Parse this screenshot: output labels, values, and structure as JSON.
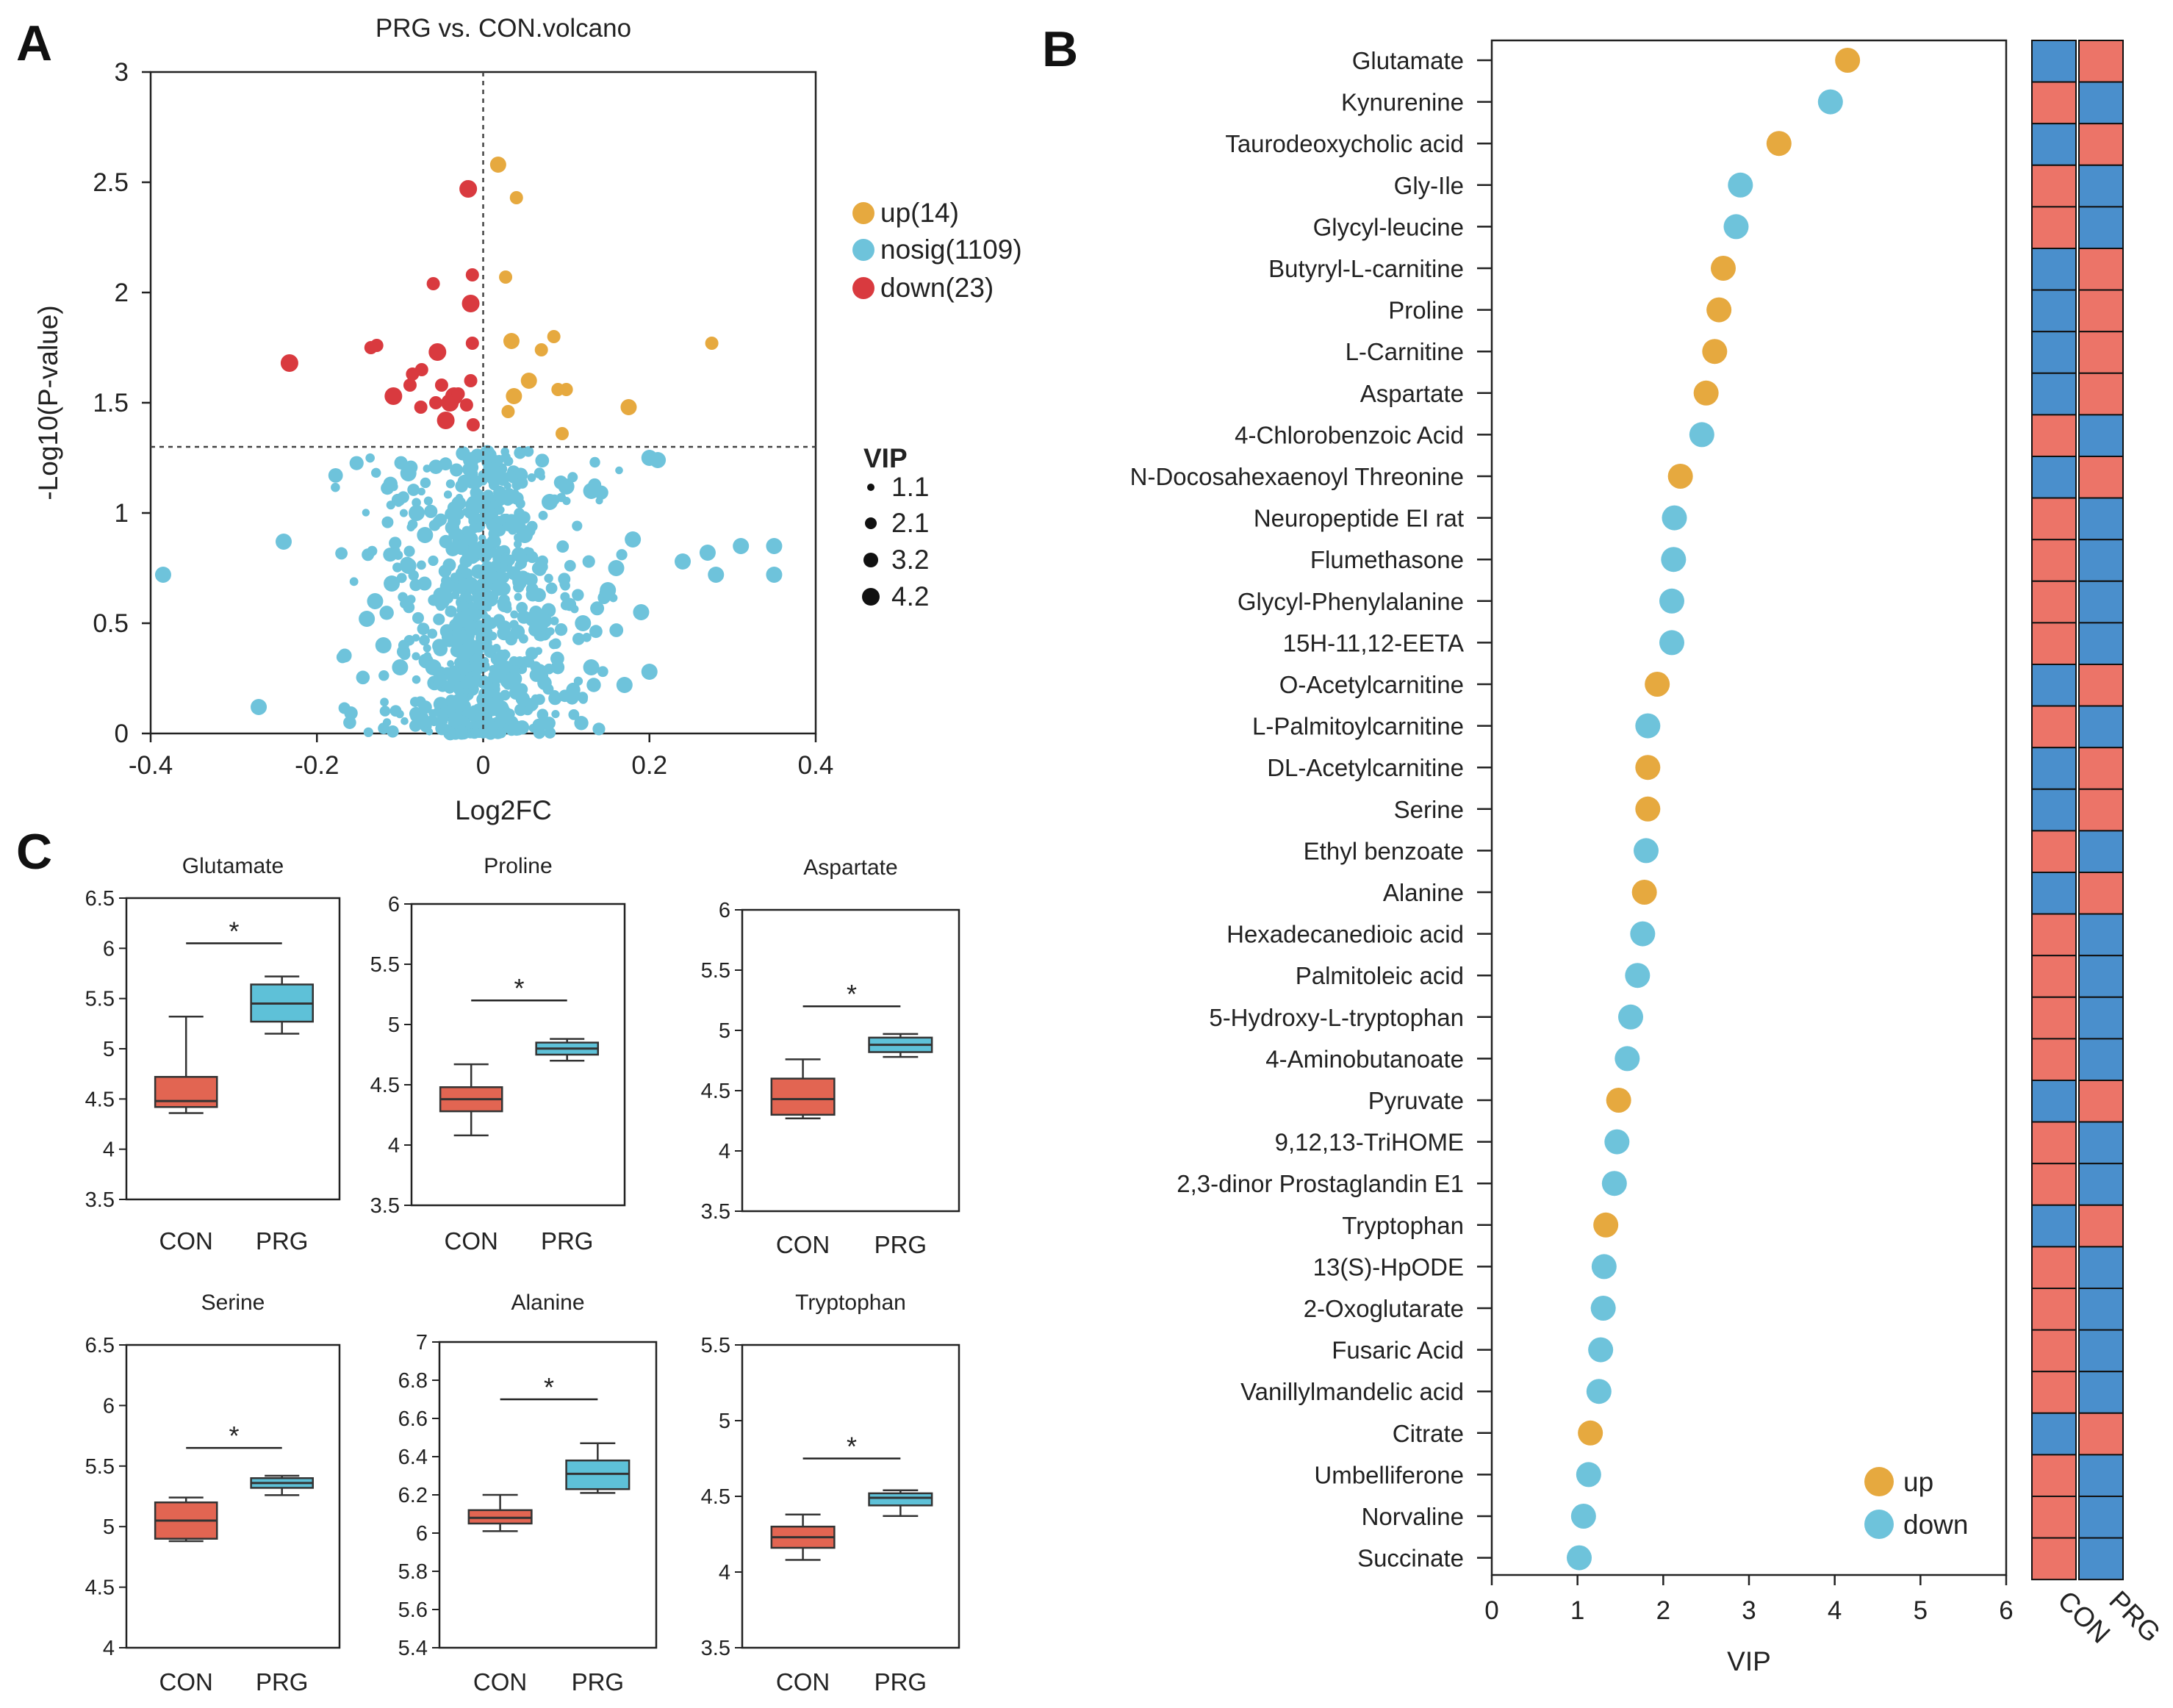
{
  "panels": {
    "a": "A",
    "b": "B",
    "c": "C"
  },
  "colors": {
    "up": "#E6A93F",
    "nosig": "#6EC3DB",
    "down": "#D93A3F",
    "box_con": "#E26552",
    "box_prg": "#5EC1D8",
    "heat_red": "#EC7468",
    "heat_blue": "#4A8FCC"
  },
  "chart_data": [
    {
      "type": "scatter",
      "title": "PRG vs. CON.volcano",
      "xlabel": "Log2FC",
      "ylabel": "-Log10(P-value)",
      "xlim": [
        -0.4,
        0.4
      ],
      "ylim": [
        0,
        3
      ],
      "xticks": [
        "-0.4",
        "-0.2",
        "0",
        "0.2",
        "0.4"
      ],
      "yticks": [
        "0",
        "0.5",
        "1",
        "1.5",
        "2",
        "2.5",
        "3"
      ],
      "thresholds": {
        "log2fc": 0,
        "neg_log10_p": 1.3
      },
      "legend": {
        "up": "up(14)",
        "nosig": "nosig(1109)",
        "down": "down(23)"
      },
      "size_legend": {
        "title": "VIP",
        "values": [
          "1.1",
          "2.1",
          "3.2",
          "4.2"
        ]
      },
      "up_points": [
        [
          0.018,
          2.58
        ],
        [
          0.04,
          2.43
        ],
        [
          0.027,
          2.07
        ],
        [
          0.034,
          1.78
        ],
        [
          0.07,
          1.74
        ],
        [
          0.085,
          1.8
        ],
        [
          0.055,
          1.6
        ],
        [
          0.09,
          1.56
        ],
        [
          0.1,
          1.56
        ],
        [
          0.037,
          1.53
        ],
        [
          0.03,
          1.46
        ],
        [
          0.095,
          1.36
        ],
        [
          0.175,
          1.48
        ],
        [
          0.275,
          1.77
        ]
      ],
      "down_points": [
        [
          -0.018,
          2.47
        ],
        [
          -0.013,
          2.08
        ],
        [
          -0.06,
          2.04
        ],
        [
          -0.015,
          1.95
        ],
        [
          -0.128,
          1.76
        ],
        [
          -0.135,
          1.75
        ],
        [
          -0.055,
          1.73
        ],
        [
          -0.013,
          1.77
        ],
        [
          -0.074,
          1.65
        ],
        [
          -0.233,
          1.68
        ],
        [
          -0.085,
          1.63
        ],
        [
          -0.05,
          1.58
        ],
        [
          -0.035,
          1.53
        ],
        [
          -0.015,
          1.6
        ],
        [
          -0.088,
          1.58
        ],
        [
          -0.04,
          1.5
        ],
        [
          -0.02,
          1.49
        ],
        [
          -0.057,
          1.5
        ],
        [
          -0.045,
          1.42
        ],
        [
          -0.012,
          1.4
        ],
        [
          -0.075,
          1.48
        ],
        [
          -0.108,
          1.53
        ],
        [
          -0.03,
          1.54
        ]
      ],
      "nosig_points": [
        [
          -0.385,
          0.72
        ],
        [
          -0.24,
          0.87
        ],
        [
          -0.27,
          0.12
        ],
        [
          -0.14,
          0.52
        ],
        [
          -0.13,
          0.6
        ],
        [
          -0.11,
          0.68
        ],
        [
          -0.12,
          0.4
        ],
        [
          -0.1,
          0.3
        ],
        [
          -0.09,
          1.18
        ],
        [
          -0.09,
          0.76
        ],
        [
          -0.08,
          1.0
        ],
        [
          -0.07,
          0.9
        ],
        [
          -0.06,
          0.3
        ],
        [
          -0.05,
          0.6
        ],
        [
          0.05,
          0.9
        ],
        [
          0.06,
          0.52
        ],
        [
          0.08,
          1.05
        ],
        [
          0.1,
          1.12
        ],
        [
          0.12,
          0.5
        ],
        [
          0.13,
          0.3
        ],
        [
          0.15,
          0.65
        ],
        [
          0.17,
          0.22
        ],
        [
          0.18,
          0.88
        ],
        [
          0.19,
          0.55
        ],
        [
          0.2,
          0.28
        ],
        [
          0.2,
          1.25
        ],
        [
          0.21,
          1.24
        ],
        [
          0.24,
          0.78
        ],
        [
          0.27,
          0.82
        ],
        [
          0.28,
          0.72
        ],
        [
          0.31,
          0.85
        ],
        [
          0.35,
          0.85
        ],
        [
          0.35,
          0.72
        ],
        [
          0.13,
          1.1
        ],
        [
          0.16,
          0.75
        ]
      ]
    },
    {
      "type": "dot",
      "title": "",
      "xlabel": "VIP",
      "xlim": [
        0,
        6
      ],
      "xticks": [
        "0",
        "1",
        "2",
        "3",
        "4",
        "5",
        "6"
      ],
      "legend": {
        "up": "up",
        "down": "down"
      },
      "heatmap_columns": [
        "CON",
        "PRG"
      ],
      "metabolites": [
        {
          "name": "Glutamate",
          "vip": 4.15,
          "dir": "up",
          "con": 0,
          "prg": 1
        },
        {
          "name": "Kynurenine",
          "vip": 3.95,
          "dir": "down",
          "con": 1,
          "prg": 0
        },
        {
          "name": "Taurodeoxycholic acid",
          "vip": 3.35,
          "dir": "up",
          "con": 0,
          "prg": 1
        },
        {
          "name": "Gly-Ile",
          "vip": 2.9,
          "dir": "down",
          "con": 1,
          "prg": 0
        },
        {
          "name": "Glycyl-leucine",
          "vip": 2.85,
          "dir": "down",
          "con": 1,
          "prg": 0
        },
        {
          "name": "Butyryl-L-carnitine",
          "vip": 2.7,
          "dir": "up",
          "con": 0,
          "prg": 1
        },
        {
          "name": "Proline",
          "vip": 2.65,
          "dir": "up",
          "con": 0,
          "prg": 1
        },
        {
          "name": "L-Carnitine",
          "vip": 2.6,
          "dir": "up",
          "con": 0,
          "prg": 1
        },
        {
          "name": "Aspartate",
          "vip": 2.5,
          "dir": "up",
          "con": 0,
          "prg": 1
        },
        {
          "name": "4-Chlorobenzoic Acid",
          "vip": 2.45,
          "dir": "down",
          "con": 1,
          "prg": 0
        },
        {
          "name": "N-Docosahexaenoyl Threonine",
          "vip": 2.2,
          "dir": "up",
          "con": 0,
          "prg": 1
        },
        {
          "name": "Neuropeptide EI rat",
          "vip": 2.13,
          "dir": "down",
          "con": 1,
          "prg": 0
        },
        {
          "name": "Flumethasone",
          "vip": 2.12,
          "dir": "down",
          "con": 1,
          "prg": 0
        },
        {
          "name": "Glycyl-Phenylalanine",
          "vip": 2.1,
          "dir": "down",
          "con": 1,
          "prg": 0
        },
        {
          "name": "15H-11,12-EETA",
          "vip": 2.1,
          "dir": "down",
          "con": 1,
          "prg": 0
        },
        {
          "name": "O-Acetylcarnitine",
          "vip": 1.93,
          "dir": "up",
          "con": 0,
          "prg": 1
        },
        {
          "name": "L-Palmitoylcarnitine",
          "vip": 1.82,
          "dir": "down",
          "con": 1,
          "prg": 0
        },
        {
          "name": "DL-Acetylcarnitine",
          "vip": 1.82,
          "dir": "up",
          "con": 0,
          "prg": 1
        },
        {
          "name": "Serine",
          "vip": 1.82,
          "dir": "up",
          "con": 0,
          "prg": 1
        },
        {
          "name": "Ethyl benzoate",
          "vip": 1.8,
          "dir": "down",
          "con": 1,
          "prg": 0
        },
        {
          "name": "Alanine",
          "vip": 1.78,
          "dir": "up",
          "con": 0,
          "prg": 1
        },
        {
          "name": "Hexadecanedioic acid",
          "vip": 1.76,
          "dir": "down",
          "con": 1,
          "prg": 0
        },
        {
          "name": "Palmitoleic acid",
          "vip": 1.7,
          "dir": "down",
          "con": 1,
          "prg": 0
        },
        {
          "name": "5-Hydroxy-L-tryptophan",
          "vip": 1.62,
          "dir": "down",
          "con": 1,
          "prg": 0
        },
        {
          "name": "4-Aminobutanoate",
          "vip": 1.58,
          "dir": "down",
          "con": 1,
          "prg": 0
        },
        {
          "name": "Pyruvate",
          "vip": 1.48,
          "dir": "up",
          "con": 0,
          "prg": 1
        },
        {
          "name": "9,12,13-TriHOME",
          "vip": 1.46,
          "dir": "down",
          "con": 1,
          "prg": 0
        },
        {
          "name": "2,3-dinor Prostaglandin E1",
          "vip": 1.43,
          "dir": "down",
          "con": 1,
          "prg": 0
        },
        {
          "name": "Tryptophan",
          "vip": 1.33,
          "dir": "up",
          "con": 0,
          "prg": 1
        },
        {
          "name": "13(S)-HpODE",
          "vip": 1.31,
          "dir": "down",
          "con": 1,
          "prg": 0
        },
        {
          "name": "2-Oxoglutarate",
          "vip": 1.3,
          "dir": "down",
          "con": 1,
          "prg": 0
        },
        {
          "name": "Fusaric Acid",
          "vip": 1.27,
          "dir": "down",
          "con": 1,
          "prg": 0
        },
        {
          "name": "Vanillylmandelic acid",
          "vip": 1.25,
          "dir": "down",
          "con": 1,
          "prg": 0
        },
        {
          "name": "Citrate",
          "vip": 1.15,
          "dir": "up",
          "con": 0,
          "prg": 1
        },
        {
          "name": "Umbelliferone",
          "vip": 1.13,
          "dir": "down",
          "con": 1,
          "prg": 0
        },
        {
          "name": "Norvaline",
          "vip": 1.07,
          "dir": "down",
          "con": 1,
          "prg": 0
        },
        {
          "name": "Succinate",
          "vip": 1.02,
          "dir": "down",
          "con": 1,
          "prg": 0
        }
      ]
    },
    {
      "type": "box",
      "groups": [
        "CON",
        "PRG"
      ],
      "significance": "*",
      "plots": [
        {
          "title": "Glutamate",
          "ylim": [
            3.5,
            6.5
          ],
          "yticks": [
            "3.5",
            "4",
            "4.5",
            "5",
            "5.5",
            "6",
            "6.5"
          ],
          "con": {
            "min": 4.36,
            "q1": 4.42,
            "median": 4.48,
            "q3": 4.72,
            "max": 5.32
          },
          "prg": {
            "min": 5.15,
            "q1": 5.27,
            "median": 5.45,
            "q3": 5.64,
            "max": 5.72
          },
          "sig_y": 6.05
        },
        {
          "title": "Proline",
          "ylim": [
            3.5,
            6
          ],
          "yticks": [
            "3.5",
            "4",
            "4.5",
            "5",
            "5.5",
            "6"
          ],
          "con": {
            "min": 4.08,
            "q1": 4.28,
            "median": 4.38,
            "q3": 4.48,
            "max": 4.67
          },
          "prg": {
            "min": 4.7,
            "q1": 4.75,
            "median": 4.8,
            "q3": 4.85,
            "max": 4.88
          },
          "sig_y": 5.2
        },
        {
          "title": "Aspartate",
          "ylim": [
            3.5,
            6
          ],
          "yticks": [
            "3.5",
            "4",
            "4.5",
            "5",
            "5.5",
            "6"
          ],
          "con": {
            "min": 4.27,
            "q1": 4.3,
            "median": 4.43,
            "q3": 4.6,
            "max": 4.76
          },
          "prg": {
            "min": 4.78,
            "q1": 4.82,
            "median": 4.88,
            "q3": 4.94,
            "max": 4.97
          },
          "sig_y": 5.2
        },
        {
          "title": "Serine",
          "ylim": [
            4,
            6.5
          ],
          "yticks": [
            "4",
            "4.5",
            "5",
            "5.5",
            "6",
            "6.5"
          ],
          "con": {
            "min": 4.88,
            "q1": 4.9,
            "median": 5.05,
            "q3": 5.2,
            "max": 5.24
          },
          "prg": {
            "min": 5.26,
            "q1": 5.32,
            "median": 5.36,
            "q3": 5.4,
            "max": 5.42
          },
          "sig_y": 5.65
        },
        {
          "title": "Alanine",
          "ylim": [
            5.4,
            7
          ],
          "yticks": [
            "5.4",
            "5.6",
            "5.8",
            "6",
            "6.2",
            "6.4",
            "6.6",
            "6.8",
            "7"
          ],
          "con": {
            "min": 6.01,
            "q1": 6.05,
            "median": 6.08,
            "q3": 6.12,
            "max": 6.2
          },
          "prg": {
            "min": 6.21,
            "q1": 6.23,
            "median": 6.31,
            "q3": 6.38,
            "max": 6.47
          },
          "sig_y": 6.7
        },
        {
          "title": "Tryptophan",
          "ylim": [
            3.5,
            5.5
          ],
          "yticks": [
            "3.5",
            "4",
            "4.5",
            "5",
            "5.5"
          ],
          "con": {
            "min": 4.08,
            "q1": 4.16,
            "median": 4.23,
            "q3": 4.3,
            "max": 4.38
          },
          "prg": {
            "min": 4.37,
            "q1": 4.44,
            "median": 4.49,
            "q3": 4.52,
            "max": 4.54
          },
          "sig_y": 4.75
        }
      ]
    }
  ]
}
